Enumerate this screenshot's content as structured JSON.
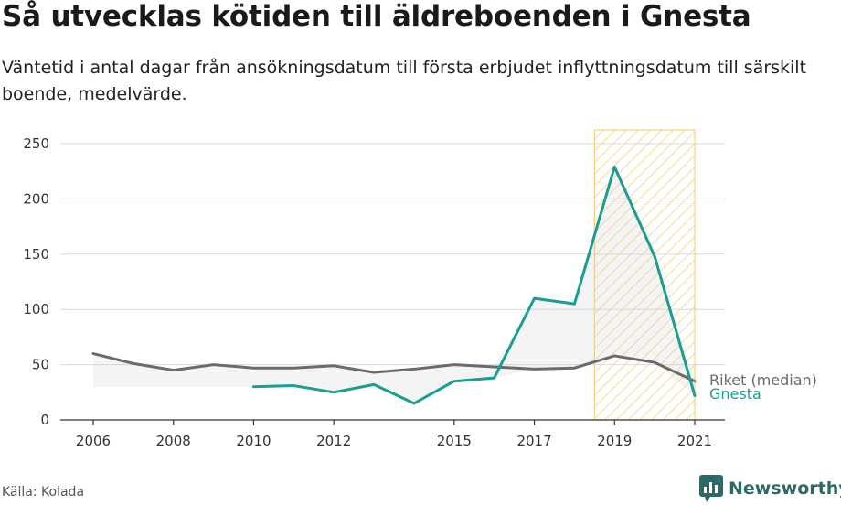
{
  "title": "Så utvecklas kötiden till äldreboenden i Gnesta",
  "subtitle": "Väntetid i antal dagar från ansökningsdatum till första erbjudet inflyttningsdatum till särskilt boende, medelvärde.",
  "source": "Källa: Kolada",
  "brand": "Newsworthy",
  "colors": {
    "gnesta": "#1a9e8f",
    "riket": "#6b6b6b",
    "highlight": "#f5c65b",
    "grid": "#d9d9d9",
    "brand": "#2b6b66"
  },
  "chart_data": {
    "type": "line",
    "ylim": [
      0,
      250
    ],
    "yticks": [
      "0",
      "50",
      "100",
      "150",
      "200",
      "250"
    ],
    "xlim": [
      2006,
      2021
    ],
    "xticks": [
      "2006",
      "2008",
      "2010",
      "2012",
      "2015",
      "2017",
      "2019",
      "2021"
    ],
    "highlight_range": [
      2018.5,
      2021
    ],
    "series": [
      {
        "name": "Riket (median)",
        "x": [
          2006,
          2007,
          2008,
          2009,
          2010,
          2011,
          2012,
          2013,
          2014,
          2015,
          2016,
          2017,
          2018,
          2019,
          2020,
          2021
        ],
        "values": [
          60,
          51,
          45,
          50,
          47,
          47,
          49,
          43,
          46,
          50,
          48,
          46,
          47,
          58,
          52,
          35
        ]
      },
      {
        "name": "Gnesta",
        "x": [
          2010,
          2011,
          2012,
          2013,
          2014,
          2015,
          2016,
          2017,
          2018,
          2019,
          2020,
          2021
        ],
        "values": [
          30,
          31,
          25,
          32,
          15,
          35,
          38,
          110,
          105,
          229,
          148,
          22
        ]
      }
    ]
  }
}
